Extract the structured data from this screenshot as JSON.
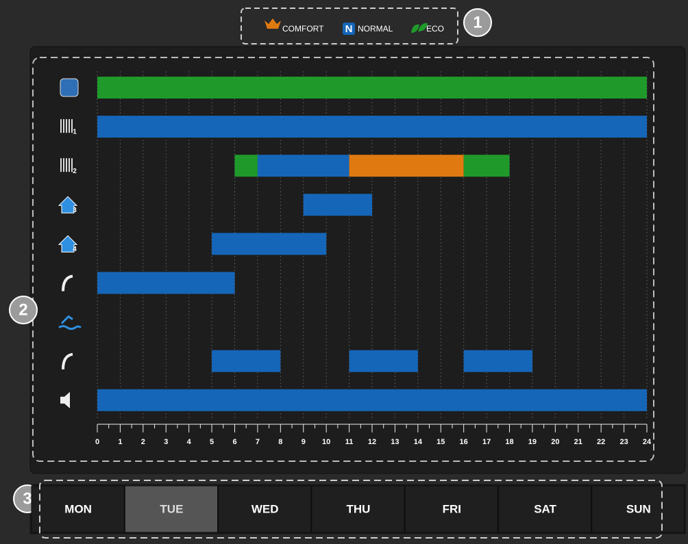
{
  "legend": [
    {
      "label": "COMFORT",
      "color": "#e07a10"
    },
    {
      "label": "NORMAL",
      "color": "#1566b8"
    },
    {
      "label": "ECO",
      "color": "#1f9a2a"
    }
  ],
  "badges": [
    "1",
    "2",
    "3"
  ],
  "hours": [
    0,
    1,
    2,
    3,
    4,
    5,
    6,
    7,
    8,
    9,
    10,
    11,
    12,
    13,
    14,
    15,
    16,
    17,
    18,
    19,
    20,
    21,
    22,
    23,
    24
  ],
  "rows": [
    {
      "segments": [
        {
          "start": 0,
          "end": 24,
          "legend": 2
        }
      ]
    },
    {
      "icon_number": "1",
      "segments": [
        {
          "start": 0,
          "end": 24,
          "legend": 1
        }
      ]
    },
    {
      "icon_number": "2",
      "segments": [
        {
          "start": 6,
          "end": 7,
          "legend": 2
        },
        {
          "start": 7,
          "end": 11,
          "legend": 1
        },
        {
          "start": 11,
          "end": 16,
          "legend": 0
        },
        {
          "start": 16,
          "end": 18,
          "legend": 2
        }
      ]
    },
    {
      "icon_number": "3",
      "segments": [
        {
          "start": 9,
          "end": 12,
          "legend": 1
        }
      ]
    },
    {
      "icon_number": "4",
      "segments": [
        {
          "start": 5,
          "end": 10,
          "legend": 1
        }
      ]
    },
    {
      "segments": [
        {
          "start": 0,
          "end": 6,
          "legend": 1
        }
      ]
    },
    {
      "segments": []
    },
    {
      "segments": [
        {
          "start": 5,
          "end": 8,
          "legend": 1
        },
        {
          "start": 11,
          "end": 14,
          "legend": 1
        },
        {
          "start": 16,
          "end": 19,
          "legend": 1
        }
      ]
    },
    {
      "segments": [
        {
          "start": 0,
          "end": 24,
          "legend": 1
        }
      ]
    }
  ],
  "days": [
    "MON",
    "TUE",
    "WED",
    "THU",
    "FRI",
    "SAT",
    "SUN"
  ],
  "selected_day": 1
}
